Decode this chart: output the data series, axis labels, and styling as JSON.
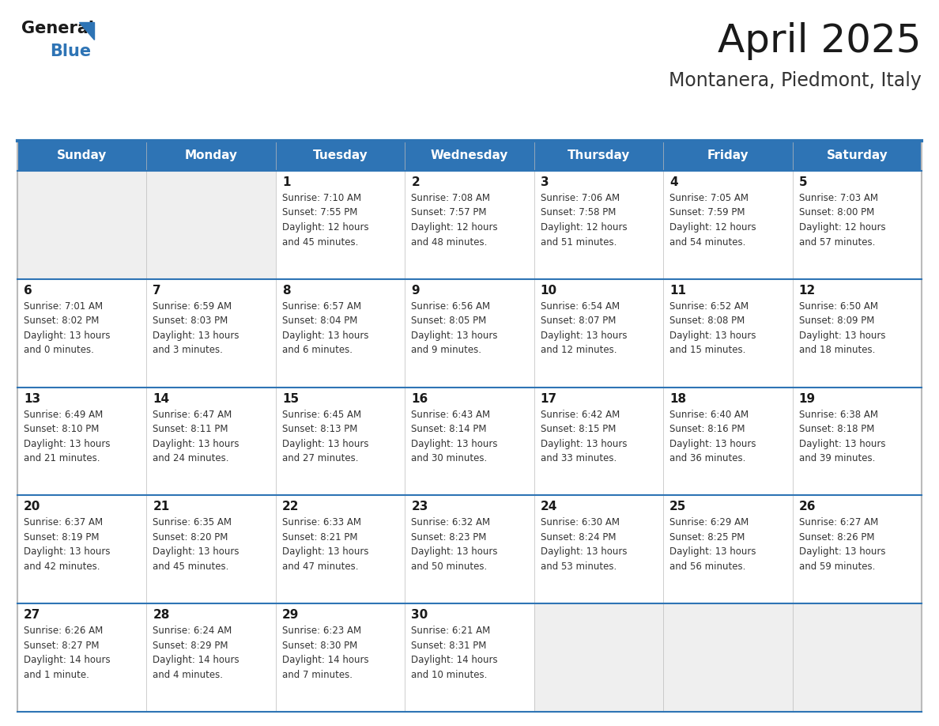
{
  "title": "April 2025",
  "subtitle": "Montanera, Piedmont, Italy",
  "header_bg": "#2E74B5",
  "header_text_color": "#FFFFFF",
  "cell_bg_light": "#EFEFEF",
  "cell_bg_white": "#FFFFFF",
  "border_color": "#2E74B5",
  "text_color": "#333333",
  "days_of_week": [
    "Sunday",
    "Monday",
    "Tuesday",
    "Wednesday",
    "Thursday",
    "Friday",
    "Saturday"
  ],
  "weeks": [
    [
      {
        "day": null,
        "info": null
      },
      {
        "day": null,
        "info": null
      },
      {
        "day": 1,
        "info": "Sunrise: 7:10 AM\nSunset: 7:55 PM\nDaylight: 12 hours\nand 45 minutes."
      },
      {
        "day": 2,
        "info": "Sunrise: 7:08 AM\nSunset: 7:57 PM\nDaylight: 12 hours\nand 48 minutes."
      },
      {
        "day": 3,
        "info": "Sunrise: 7:06 AM\nSunset: 7:58 PM\nDaylight: 12 hours\nand 51 minutes."
      },
      {
        "day": 4,
        "info": "Sunrise: 7:05 AM\nSunset: 7:59 PM\nDaylight: 12 hours\nand 54 minutes."
      },
      {
        "day": 5,
        "info": "Sunrise: 7:03 AM\nSunset: 8:00 PM\nDaylight: 12 hours\nand 57 minutes."
      }
    ],
    [
      {
        "day": 6,
        "info": "Sunrise: 7:01 AM\nSunset: 8:02 PM\nDaylight: 13 hours\nand 0 minutes."
      },
      {
        "day": 7,
        "info": "Sunrise: 6:59 AM\nSunset: 8:03 PM\nDaylight: 13 hours\nand 3 minutes."
      },
      {
        "day": 8,
        "info": "Sunrise: 6:57 AM\nSunset: 8:04 PM\nDaylight: 13 hours\nand 6 minutes."
      },
      {
        "day": 9,
        "info": "Sunrise: 6:56 AM\nSunset: 8:05 PM\nDaylight: 13 hours\nand 9 minutes."
      },
      {
        "day": 10,
        "info": "Sunrise: 6:54 AM\nSunset: 8:07 PM\nDaylight: 13 hours\nand 12 minutes."
      },
      {
        "day": 11,
        "info": "Sunrise: 6:52 AM\nSunset: 8:08 PM\nDaylight: 13 hours\nand 15 minutes."
      },
      {
        "day": 12,
        "info": "Sunrise: 6:50 AM\nSunset: 8:09 PM\nDaylight: 13 hours\nand 18 minutes."
      }
    ],
    [
      {
        "day": 13,
        "info": "Sunrise: 6:49 AM\nSunset: 8:10 PM\nDaylight: 13 hours\nand 21 minutes."
      },
      {
        "day": 14,
        "info": "Sunrise: 6:47 AM\nSunset: 8:11 PM\nDaylight: 13 hours\nand 24 minutes."
      },
      {
        "day": 15,
        "info": "Sunrise: 6:45 AM\nSunset: 8:13 PM\nDaylight: 13 hours\nand 27 minutes."
      },
      {
        "day": 16,
        "info": "Sunrise: 6:43 AM\nSunset: 8:14 PM\nDaylight: 13 hours\nand 30 minutes."
      },
      {
        "day": 17,
        "info": "Sunrise: 6:42 AM\nSunset: 8:15 PM\nDaylight: 13 hours\nand 33 minutes."
      },
      {
        "day": 18,
        "info": "Sunrise: 6:40 AM\nSunset: 8:16 PM\nDaylight: 13 hours\nand 36 minutes."
      },
      {
        "day": 19,
        "info": "Sunrise: 6:38 AM\nSunset: 8:18 PM\nDaylight: 13 hours\nand 39 minutes."
      }
    ],
    [
      {
        "day": 20,
        "info": "Sunrise: 6:37 AM\nSunset: 8:19 PM\nDaylight: 13 hours\nand 42 minutes."
      },
      {
        "day": 21,
        "info": "Sunrise: 6:35 AM\nSunset: 8:20 PM\nDaylight: 13 hours\nand 45 minutes."
      },
      {
        "day": 22,
        "info": "Sunrise: 6:33 AM\nSunset: 8:21 PM\nDaylight: 13 hours\nand 47 minutes."
      },
      {
        "day": 23,
        "info": "Sunrise: 6:32 AM\nSunset: 8:23 PM\nDaylight: 13 hours\nand 50 minutes."
      },
      {
        "day": 24,
        "info": "Sunrise: 6:30 AM\nSunset: 8:24 PM\nDaylight: 13 hours\nand 53 minutes."
      },
      {
        "day": 25,
        "info": "Sunrise: 6:29 AM\nSunset: 8:25 PM\nDaylight: 13 hours\nand 56 minutes."
      },
      {
        "day": 26,
        "info": "Sunrise: 6:27 AM\nSunset: 8:26 PM\nDaylight: 13 hours\nand 59 minutes."
      }
    ],
    [
      {
        "day": 27,
        "info": "Sunrise: 6:26 AM\nSunset: 8:27 PM\nDaylight: 14 hours\nand 1 minute."
      },
      {
        "day": 28,
        "info": "Sunrise: 6:24 AM\nSunset: 8:29 PM\nDaylight: 14 hours\nand 4 minutes."
      },
      {
        "day": 29,
        "info": "Sunrise: 6:23 AM\nSunset: 8:30 PM\nDaylight: 14 hours\nand 7 minutes."
      },
      {
        "day": 30,
        "info": "Sunrise: 6:21 AM\nSunset: 8:31 PM\nDaylight: 14 hours\nand 10 minutes."
      },
      {
        "day": null,
        "info": null
      },
      {
        "day": null,
        "info": null
      },
      {
        "day": null,
        "info": null
      }
    ]
  ],
  "logo_general_color": "#1a1a1a",
  "logo_blue_color": "#2E74B5",
  "title_fontsize": 36,
  "subtitle_fontsize": 17,
  "dow_fontsize": 11,
  "day_num_fontsize": 11,
  "info_fontsize": 8.5
}
